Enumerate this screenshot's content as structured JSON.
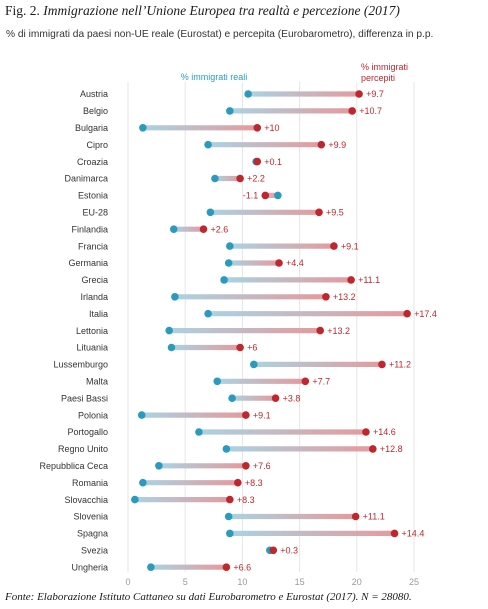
{
  "figure": {
    "number": "Fig. 2.",
    "title": "Immigrazione nell’Unione Europea tra realtà e percezione (2017)",
    "subtitle": "% di immigrati da paesi non-UE reale (Eurostat) e percepita (Eurobarometro), differenza in p.p.",
    "source": "Fonte: Elaborazione Istituto Cattaneo su dati Eurobarometro e Eurostat (2017). N = 28080."
  },
  "colors": {
    "real": "#2b9bbd",
    "perceived": "#c0262d",
    "grid": "#e6e6e6"
  },
  "chart_data": {
    "type": "dumbbell",
    "xlim": [
      0,
      25
    ],
    "xticks": [
      0,
      5,
      10,
      15,
      20,
      25
    ],
    "legend": {
      "real": "% immigrati reali",
      "perceived_line1": "% immigrati",
      "perceived_line2": "percepiti"
    },
    "grid": true,
    "rows": [
      {
        "country": "Austria",
        "real": 10.5,
        "perceived": 20.2,
        "diff": "+9.7"
      },
      {
        "country": "Belgio",
        "real": 8.9,
        "perceived": 19.6,
        "diff": "+10.7"
      },
      {
        "country": "Bulgaria",
        "real": 1.3,
        "perceived": 11.3,
        "diff": "+10"
      },
      {
        "country": "Cipro",
        "real": 7.0,
        "perceived": 16.9,
        "diff": "+9.9"
      },
      {
        "country": "Croazia",
        "real": 11.2,
        "perceived": 11.3,
        "diff": "+0.1"
      },
      {
        "country": "Danimarca",
        "real": 7.6,
        "perceived": 9.8,
        "diff": "+2.2"
      },
      {
        "country": "Estonia",
        "real": 13.1,
        "perceived": 12.0,
        "diff": "-1.1"
      },
      {
        "country": "EU-28",
        "real": 7.2,
        "perceived": 16.7,
        "diff": "+9.5"
      },
      {
        "country": "Finlandia",
        "real": 4.0,
        "perceived": 6.6,
        "diff": "+2.6"
      },
      {
        "country": "Francia",
        "real": 8.9,
        "perceived": 18.0,
        "diff": "+9.1"
      },
      {
        "country": "Germania",
        "real": 8.8,
        "perceived": 13.2,
        "diff": "+4.4"
      },
      {
        "country": "Grecia",
        "real": 8.4,
        "perceived": 19.5,
        "diff": "+11.1"
      },
      {
        "country": "Irlanda",
        "real": 4.1,
        "perceived": 17.3,
        "diff": "+13.2"
      },
      {
        "country": "Italia",
        "real": 7.0,
        "perceived": 24.4,
        "diff": "+17.4"
      },
      {
        "country": "Lettonia",
        "real": 3.6,
        "perceived": 16.8,
        "diff": "+13.2"
      },
      {
        "country": "Lituania",
        "real": 3.8,
        "perceived": 9.8,
        "diff": "+6"
      },
      {
        "country": "Lussemburgo",
        "real": 11.0,
        "perceived": 22.2,
        "diff": "+11.2"
      },
      {
        "country": "Malta",
        "real": 7.8,
        "perceived": 15.5,
        "diff": "+7.7"
      },
      {
        "country": "Paesi Bassi",
        "real": 9.1,
        "perceived": 12.9,
        "diff": "+3.8"
      },
      {
        "country": "Polonia",
        "real": 1.2,
        "perceived": 10.3,
        "diff": "+9.1"
      },
      {
        "country": "Portogallo",
        "real": 6.2,
        "perceived": 20.8,
        "diff": "+14.6"
      },
      {
        "country": "Regno Unito",
        "real": 8.6,
        "perceived": 21.4,
        "diff": "+12.8"
      },
      {
        "country": "Repubblica Ceca",
        "real": 2.7,
        "perceived": 10.3,
        "diff": "+7.6"
      },
      {
        "country": "Romania",
        "real": 1.3,
        "perceived": 9.6,
        "diff": "+8.3"
      },
      {
        "country": "Slovacchia",
        "real": 0.6,
        "perceived": 8.9,
        "diff": "+8.3"
      },
      {
        "country": "Slovenia",
        "real": 8.8,
        "perceived": 19.9,
        "diff": "+11.1"
      },
      {
        "country": "Spagna",
        "real": 8.9,
        "perceived": 23.3,
        "diff": "+14.4"
      },
      {
        "country": "Svezia",
        "real": 12.4,
        "perceived": 12.7,
        "diff": "+0.3"
      },
      {
        "country": "Ungheria",
        "real": 2.0,
        "perceived": 8.6,
        "diff": "+6.6"
      }
    ]
  }
}
